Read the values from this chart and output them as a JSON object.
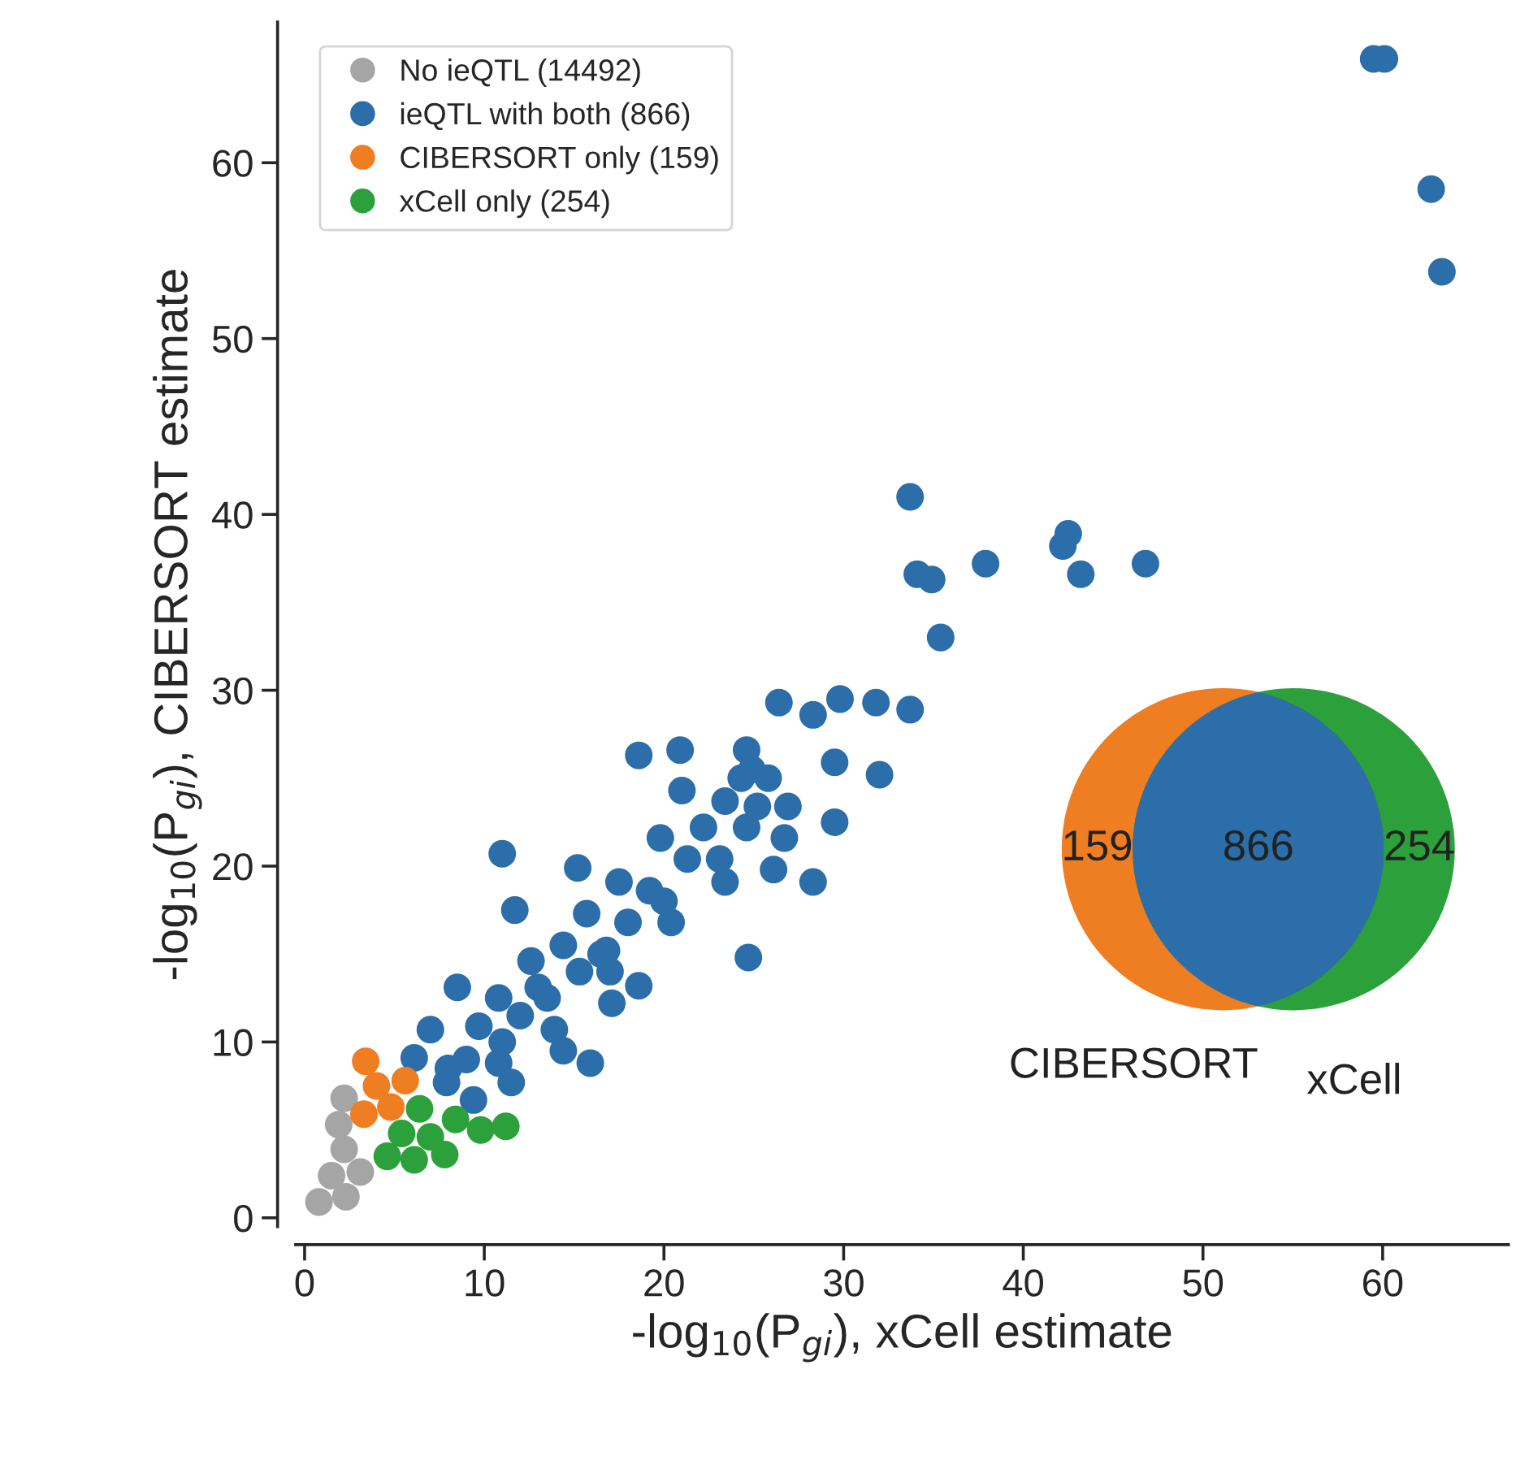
{
  "chart_data": {
    "type": "scatter",
    "xlabel": "-log$_{10}$(P$_{gi}$), xCell estimate",
    "ylabel": "-log$_{10}$(P$_{gi}$), CIBERSORT estimate",
    "xlim": [
      -0.5,
      67
    ],
    "ylim": [
      -0.5,
      68
    ],
    "xticks": [
      0,
      10,
      20,
      30,
      40,
      50,
      60
    ],
    "yticks": [
      0,
      10,
      20,
      30,
      40,
      50,
      60
    ],
    "grid": false,
    "legend": "top left",
    "marker": "circle",
    "annotations": [
      "159",
      "866",
      "254",
      "CIBERSORT",
      "xCell"
    ],
    "series": [
      {
        "name": "No ieQTL (14492)",
        "color": "#a5a5a5",
        "x": [
          0.8,
          2.3,
          1.5,
          3.1,
          2.2,
          1.9,
          2.2
        ],
        "values": [
          0.9,
          1.2,
          2.4,
          2.6,
          3.9,
          5.3,
          6.8
        ]
      },
      {
        "name": "ieQTL with both (866)",
        "color": "#2b6ea9",
        "x": [
          59.5,
          60.1,
          62.7,
          63.3,
          33.7,
          34.1,
          34.9,
          35.4,
          37.9,
          42.5,
          42.2,
          43.2,
          46.8,
          26.4,
          28.3,
          29.8,
          31.8,
          33.7,
          18.6,
          20.9,
          24.6,
          29.5,
          32.0,
          29.5,
          21.0,
          25.8,
          26.9,
          11.0,
          28.3,
          24.7,
          15.9,
          18.6,
          26.7,
          26.1,
          23.4,
          15.2,
          11.7,
          20.4,
          18.0,
          19.8,
          22.2,
          24.6,
          24.3,
          17.5,
          16.8,
          14.4,
          13.0,
          10.8,
          8.5,
          9.7,
          13.9,
          17.1,
          7.0,
          6.1,
          10.8,
          7.9,
          11.5,
          14.4,
          9.4,
          19.2,
          15.7,
          12.6,
          15.3,
          21.3,
          23.1,
          25.2,
          23.4,
          24.9,
          12.0,
          13.5,
          16.5,
          11.0,
          9.0,
          8.0,
          20.0,
          17.0
        ],
        "values": [
          65.9,
          65.9,
          58.5,
          53.8,
          41.0,
          36.6,
          36.3,
          33.0,
          37.2,
          38.9,
          38.2,
          36.6,
          37.2,
          29.3,
          28.6,
          29.5,
          29.3,
          28.9,
          26.3,
          26.6,
          26.6,
          25.9,
          25.2,
          22.5,
          24.3,
          25.0,
          23.4,
          20.7,
          19.1,
          14.8,
          8.8,
          13.2,
          21.6,
          19.8,
          19.1,
          19.9,
          17.5,
          16.8,
          16.8,
          21.6,
          22.2,
          22.2,
          25.0,
          19.1,
          15.2,
          15.5,
          13.1,
          12.5,
          13.1,
          10.9,
          10.7,
          12.2,
          10.7,
          9.1,
          8.8,
          7.7,
          7.7,
          9.5,
          6.7,
          18.6,
          17.3,
          14.6,
          14.0,
          20.4,
          20.4,
          23.4,
          23.7,
          25.5,
          11.5,
          12.5,
          15.0,
          10.0,
          9.0,
          8.5,
          18.0,
          14.0
        ]
      },
      {
        "name": "CIBERSORT only (159)",
        "color": "#ef7d22",
        "x": [
          3.3,
          4.8,
          4.0,
          5.6,
          3.4
        ],
        "values": [
          5.9,
          6.3,
          7.5,
          7.8,
          8.9
        ]
      },
      {
        "name": "xCell only (254)",
        "color": "#2ca03a",
        "x": [
          4.6,
          6.1,
          5.4,
          7.0,
          6.4,
          7.8,
          8.4,
          9.8,
          11.2
        ],
        "values": [
          3.5,
          3.3,
          4.8,
          4.6,
          6.2,
          3.6,
          5.6,
          5.0,
          5.2
        ]
      }
    ]
  }
}
